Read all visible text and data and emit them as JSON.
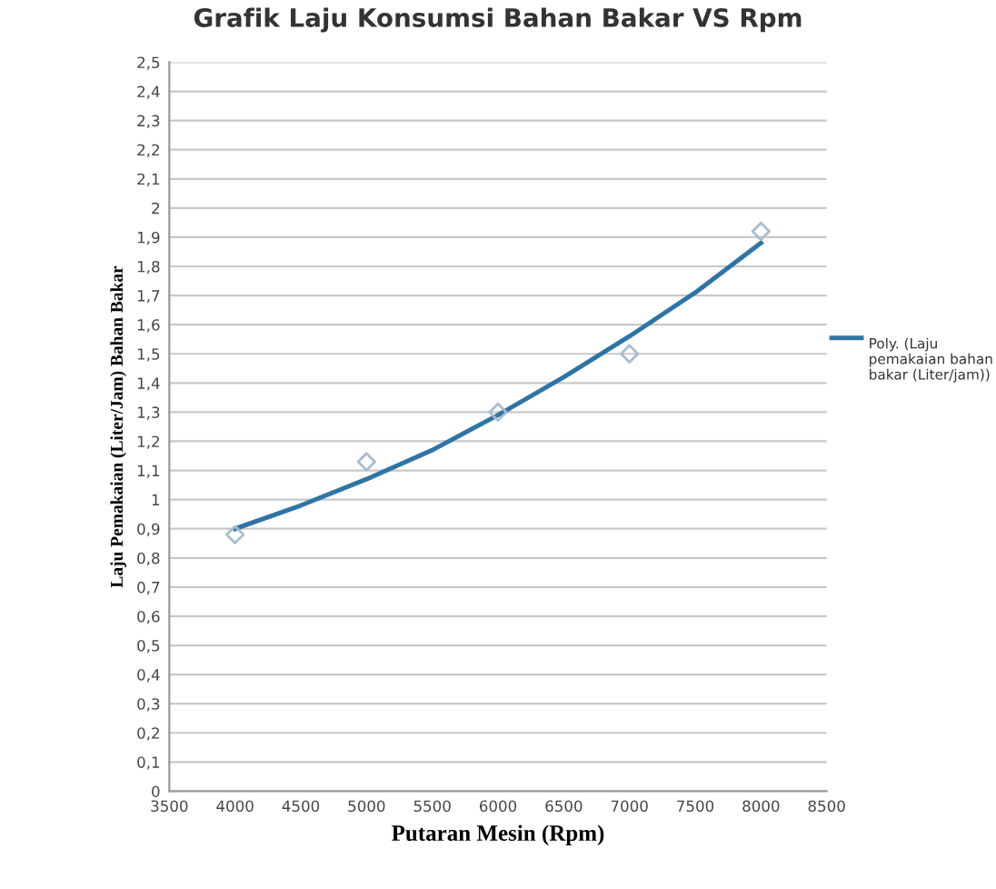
{
  "chart_data": {
    "type": "scatter",
    "title": "Grafik Laju Konsumsi Bahan Bakar VS Rpm",
    "xlabel": "Putaran Mesin (Rpm)",
    "ylabel": "Laju Pemakaian (Liter/Jam) Bahan Bakar",
    "series": [
      {
        "color": "#a9bcd0",
        "marker": "diamond",
        "x": [
          4000,
          5000,
          6000,
          7000,
          8000
        ],
        "values": [
          0.88,
          1.13,
          1.3,
          1.5,
          1.92
        ]
      },
      {
        "type": "line",
        "name": "Poly. (Laju pemakaian bahan bakar (Liter/jam))",
        "color": "#2e75a6",
        "marker": "none",
        "line_style": "solid",
        "x": [
          4000,
          4500,
          5000,
          5500,
          6000,
          6500,
          7000,
          7500,
          8000
        ],
        "values": [
          0.9,
          0.98,
          1.07,
          1.17,
          1.29,
          1.42,
          1.56,
          1.71,
          1.88
        ]
      }
    ],
    "xlim": [
      3500,
      8500
    ],
    "xticks": [
      3500,
      4000,
      4500,
      5000,
      5500,
      6000,
      6500,
      7000,
      7500,
      8000,
      8500
    ],
    "ylim": [
      0,
      2.5
    ],
    "yticks": [
      0,
      {
        "value": 0.1,
        "label": "0,1"
      },
      {
        "value": 0.2,
        "label": "0,2"
      },
      {
        "value": 0.3,
        "label": "0,3"
      },
      {
        "value": 0.4,
        "label": "0,4"
      },
      {
        "value": 0.5,
        "label": "0,5"
      },
      {
        "value": 0.6,
        "label": "0,6"
      },
      {
        "value": 0.7,
        "label": "0,7"
      },
      {
        "value": 0.8,
        "label": "0,8"
      },
      {
        "value": 0.9,
        "label": "0,9"
      },
      1,
      {
        "value": 1.1,
        "label": "1,1"
      },
      {
        "value": 1.2,
        "label": "1,2"
      },
      {
        "value": 1.3,
        "label": "1,3"
      },
      {
        "value": 1.4,
        "label": "1,4"
      },
      {
        "value": 1.5,
        "label": "1,5"
      },
      {
        "value": 1.6,
        "label": "1,6"
      },
      {
        "value": 1.7,
        "label": "1,7"
      },
      {
        "value": 1.8,
        "label": "1,8"
      },
      {
        "value": 1.9,
        "label": "1,9"
      },
      2,
      {
        "value": 2.1,
        "label": "2,1"
      },
      {
        "value": 2.2,
        "label": "2,2"
      },
      {
        "value": 2.3,
        "label": "2,3"
      },
      {
        "value": 2.4,
        "label": "2,4"
      },
      {
        "value": 2.5,
        "label": "2,5"
      }
    ],
    "grid": "y",
    "legend": "right"
  }
}
